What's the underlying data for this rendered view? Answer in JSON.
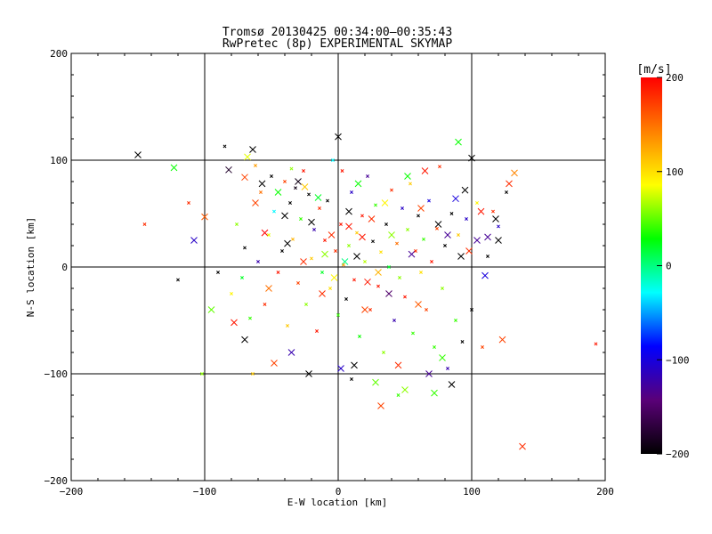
{
  "chart_data": {
    "type": "scatter",
    "title": "Tromsø 20130425 00:34:00–00:35:43",
    "subtitle": "RwPretec (8p) EXPERIMENTAL SKYMAP",
    "xlabel": "E-W location [km]",
    "ylabel": "N-S location [km]",
    "xlim": [
      -200,
      200
    ],
    "ylim": [
      -200,
      200
    ],
    "x_ticks": [
      -200,
      -100,
      0,
      100,
      200
    ],
    "y_ticks": [
      -200,
      -100,
      0,
      100,
      200
    ],
    "x_tick_labels": [
      "−200",
      "−100",
      "0",
      "100",
      "200"
    ],
    "y_tick_labels": [
      "−200",
      "−100",
      "0",
      "100",
      "200"
    ],
    "grid_lines_x": [
      -100,
      0,
      100
    ],
    "grid_lines_y": [
      -100,
      0,
      100
    ],
    "marker": "x",
    "colorbar": {
      "label": "[m/s]",
      "range": [
        -200,
        200
      ],
      "ticks": [
        -200,
        -100,
        0,
        100,
        200
      ],
      "tick_labels": [
        "−200",
        "−100",
        "0",
        "100",
        "200"
      ],
      "colors": [
        "#000000",
        "#5a0078",
        "#0000ff",
        "#00ffff",
        "#00ff00",
        "#ffff00",
        "#ff8000",
        "#ff0000"
      ]
    },
    "points": [
      {
        "x": -150,
        "y": 105,
        "v": -200,
        "s": "L"
      },
      {
        "x": -123,
        "y": 93,
        "v": 30,
        "s": "L"
      },
      {
        "x": -108,
        "y": 25,
        "v": -110,
        "s": "L"
      },
      {
        "x": -100,
        "y": 47,
        "v": 160,
        "s": "L"
      },
      {
        "x": -95,
        "y": -40,
        "v": 50,
        "s": "L"
      },
      {
        "x": -82,
        "y": 91,
        "v": -180,
        "s": "L"
      },
      {
        "x": -78,
        "y": -52,
        "v": 190,
        "s": "L"
      },
      {
        "x": -70,
        "y": -68,
        "v": -200,
        "s": "L"
      },
      {
        "x": -68,
        "y": 103,
        "v": 80,
        "s": "L"
      },
      {
        "x": -64,
        "y": 110,
        "v": -200,
        "s": "L"
      },
      {
        "x": -62,
        "y": 60,
        "v": 170,
        "s": "L"
      },
      {
        "x": -57,
        "y": 78,
        "v": -200,
        "s": "L"
      },
      {
        "x": -55,
        "y": 32,
        "v": 200,
        "s": "L"
      },
      {
        "x": -52,
        "y": -20,
        "v": 150,
        "s": "L"
      },
      {
        "x": -48,
        "y": -90,
        "v": 170,
        "s": "L"
      },
      {
        "x": -45,
        "y": 70,
        "v": 30,
        "s": "L"
      },
      {
        "x": -40,
        "y": 48,
        "v": -200,
        "s": "L"
      },
      {
        "x": -38,
        "y": 22,
        "v": -200,
        "s": "L"
      },
      {
        "x": -35,
        "y": -80,
        "v": -120,
        "s": "L"
      },
      {
        "x": -30,
        "y": 80,
        "v": -190,
        "s": "L"
      },
      {
        "x": -25,
        "y": 75,
        "v": 110,
        "s": "L"
      },
      {
        "x": -22,
        "y": -100,
        "v": -200,
        "s": "L"
      },
      {
        "x": -20,
        "y": 42,
        "v": -200,
        "s": "L"
      },
      {
        "x": -15,
        "y": 65,
        "v": 20,
        "s": "L"
      },
      {
        "x": -12,
        "y": -25,
        "v": 180,
        "s": "L"
      },
      {
        "x": -10,
        "y": 12,
        "v": 60,
        "s": "L"
      },
      {
        "x": -5,
        "y": 30,
        "v": 180,
        "s": "L"
      },
      {
        "x": 0,
        "y": 122,
        "v": -200,
        "s": "L"
      },
      {
        "x": 2,
        "y": -95,
        "v": -110,
        "s": "L"
      },
      {
        "x": 5,
        "y": 5,
        "v": 0,
        "s": "L"
      },
      {
        "x": 8,
        "y": 52,
        "v": -200,
        "s": "L"
      },
      {
        "x": 12,
        "y": -92,
        "v": -200,
        "s": "L"
      },
      {
        "x": 15,
        "y": 78,
        "v": 30,
        "s": "L"
      },
      {
        "x": 18,
        "y": 28,
        "v": 190,
        "s": "L"
      },
      {
        "x": 20,
        "y": -40,
        "v": 170,
        "s": "L"
      },
      {
        "x": 25,
        "y": 45,
        "v": 180,
        "s": "L"
      },
      {
        "x": 28,
        "y": -108,
        "v": 50,
        "s": "L"
      },
      {
        "x": 32,
        "y": -130,
        "v": 170,
        "s": "L"
      },
      {
        "x": 35,
        "y": 60,
        "v": 90,
        "s": "L"
      },
      {
        "x": 38,
        "y": -25,
        "v": -150,
        "s": "L"
      },
      {
        "x": 40,
        "y": 30,
        "v": 60,
        "s": "L"
      },
      {
        "x": 45,
        "y": -92,
        "v": 180,
        "s": "L"
      },
      {
        "x": 50,
        "y": -115,
        "v": 60,
        "s": "L"
      },
      {
        "x": 52,
        "y": 85,
        "v": 30,
        "s": "L"
      },
      {
        "x": 55,
        "y": 12,
        "v": -130,
        "s": "L"
      },
      {
        "x": 60,
        "y": -35,
        "v": 160,
        "s": "L"
      },
      {
        "x": 62,
        "y": 55,
        "v": 170,
        "s": "L"
      },
      {
        "x": 65,
        "y": 90,
        "v": 190,
        "s": "L"
      },
      {
        "x": 68,
        "y": -100,
        "v": -130,
        "s": "L"
      },
      {
        "x": 72,
        "y": -118,
        "v": 40,
        "s": "L"
      },
      {
        "x": 75,
        "y": 40,
        "v": -200,
        "s": "L"
      },
      {
        "x": 78,
        "y": -85,
        "v": 40,
        "s": "L"
      },
      {
        "x": 82,
        "y": 30,
        "v": -130,
        "s": "L"
      },
      {
        "x": 85,
        "y": -110,
        "v": -200,
        "s": "L"
      },
      {
        "x": 88,
        "y": 64,
        "v": -100,
        "s": "L"
      },
      {
        "x": 90,
        "y": 117,
        "v": 30,
        "s": "L"
      },
      {
        "x": 92,
        "y": 10,
        "v": -200,
        "s": "L"
      },
      {
        "x": 95,
        "y": 72,
        "v": -200,
        "s": "L"
      },
      {
        "x": 98,
        "y": 15,
        "v": 180,
        "s": "L"
      },
      {
        "x": 100,
        "y": 102,
        "v": -200,
        "s": "L"
      },
      {
        "x": 104,
        "y": 25,
        "v": -130,
        "s": "L"
      },
      {
        "x": 107,
        "y": 52,
        "v": 190,
        "s": "L"
      },
      {
        "x": 110,
        "y": -8,
        "v": -100,
        "s": "L"
      },
      {
        "x": 112,
        "y": 28,
        "v": -130,
        "s": "L"
      },
      {
        "x": 118,
        "y": 45,
        "v": -200,
        "s": "L"
      },
      {
        "x": 120,
        "y": 25,
        "v": -200,
        "s": "L"
      },
      {
        "x": 123,
        "y": -68,
        "v": 170,
        "s": "L"
      },
      {
        "x": 128,
        "y": 78,
        "v": 180,
        "s": "L"
      },
      {
        "x": 132,
        "y": 88,
        "v": 140,
        "s": "L"
      },
      {
        "x": 138,
        "y": -168,
        "v": 180,
        "s": "L"
      },
      {
        "x": -70,
        "y": 84,
        "v": 170,
        "s": "L"
      },
      {
        "x": 8,
        "y": 38,
        "v": 190,
        "s": "L"
      },
      {
        "x": 14,
        "y": 10,
        "v": -200,
        "s": "L"
      },
      {
        "x": -3,
        "y": -10,
        "v": 90,
        "s": "L"
      },
      {
        "x": 30,
        "y": -5,
        "v": 120,
        "s": "L"
      },
      {
        "x": -26,
        "y": 5,
        "v": 180,
        "s": "L"
      },
      {
        "x": 22,
        "y": -14,
        "v": 190,
        "s": "L"
      },
      {
        "x": -145,
        "y": 40,
        "v": 180,
        "s": "S"
      },
      {
        "x": -120,
        "y": -12,
        "v": -200,
        "s": "S"
      },
      {
        "x": -112,
        "y": 60,
        "v": 180,
        "s": "S"
      },
      {
        "x": -102,
        "y": -100,
        "v": 60,
        "s": "S"
      },
      {
        "x": -90,
        "y": -5,
        "v": -200,
        "s": "S"
      },
      {
        "x": -85,
        "y": 113,
        "v": -200,
        "s": "S"
      },
      {
        "x": -80,
        "y": -25,
        "v": 90,
        "s": "S"
      },
      {
        "x": -76,
        "y": 40,
        "v": 60,
        "s": "S"
      },
      {
        "x": -72,
        "y": -10,
        "v": 20,
        "s": "S"
      },
      {
        "x": -70,
        "y": 18,
        "v": -200,
        "s": "S"
      },
      {
        "x": -66,
        "y": -48,
        "v": 40,
        "s": "S"
      },
      {
        "x": -62,
        "y": 95,
        "v": 130,
        "s": "S"
      },
      {
        "x": -60,
        "y": 5,
        "v": -120,
        "s": "S"
      },
      {
        "x": -58,
        "y": 70,
        "v": 150,
        "s": "S"
      },
      {
        "x": -55,
        "y": -35,
        "v": 180,
        "s": "S"
      },
      {
        "x": -52,
        "y": 30,
        "v": 80,
        "s": "S"
      },
      {
        "x": -50,
        "y": 85,
        "v": -200,
        "s": "S"
      },
      {
        "x": -48,
        "y": 52,
        "v": -30,
        "s": "S"
      },
      {
        "x": -45,
        "y": -5,
        "v": 190,
        "s": "S"
      },
      {
        "x": -42,
        "y": 15,
        "v": -200,
        "s": "S"
      },
      {
        "x": -40,
        "y": 80,
        "v": 170,
        "s": "S"
      },
      {
        "x": -38,
        "y": -55,
        "v": 110,
        "s": "S"
      },
      {
        "x": -36,
        "y": 60,
        "v": -200,
        "s": "S"
      },
      {
        "x": -34,
        "y": 26,
        "v": 120,
        "s": "S"
      },
      {
        "x": -32,
        "y": 74,
        "v": -190,
        "s": "S"
      },
      {
        "x": -30,
        "y": -15,
        "v": 170,
        "s": "S"
      },
      {
        "x": -28,
        "y": 45,
        "v": 40,
        "s": "S"
      },
      {
        "x": -26,
        "y": 90,
        "v": 190,
        "s": "S"
      },
      {
        "x": -24,
        "y": -35,
        "v": 60,
        "s": "S"
      },
      {
        "x": -22,
        "y": 68,
        "v": -200,
        "s": "S"
      },
      {
        "x": -20,
        "y": 8,
        "v": 110,
        "s": "S"
      },
      {
        "x": -18,
        "y": 35,
        "v": -120,
        "s": "S"
      },
      {
        "x": -16,
        "y": -60,
        "v": 190,
        "s": "S"
      },
      {
        "x": -14,
        "y": 55,
        "v": 180,
        "s": "S"
      },
      {
        "x": -12,
        "y": -5,
        "v": 20,
        "s": "S"
      },
      {
        "x": -10,
        "y": 25,
        "v": 190,
        "s": "S"
      },
      {
        "x": -8,
        "y": 62,
        "v": -200,
        "s": "S"
      },
      {
        "x": -6,
        "y": -20,
        "v": 100,
        "s": "S"
      },
      {
        "x": -4,
        "y": 100,
        "v": -30,
        "s": "S"
      },
      {
        "x": -2,
        "y": 15,
        "v": 180,
        "s": "S"
      },
      {
        "x": 0,
        "y": -45,
        "v": 40,
        "s": "S"
      },
      {
        "x": 2,
        "y": 40,
        "v": 190,
        "s": "S"
      },
      {
        "x": 4,
        "y": 2,
        "v": 130,
        "s": "S"
      },
      {
        "x": 6,
        "y": -30,
        "v": -200,
        "s": "S"
      },
      {
        "x": 8,
        "y": 20,
        "v": 60,
        "s": "S"
      },
      {
        "x": 10,
        "y": 70,
        "v": -110,
        "s": "S"
      },
      {
        "x": 12,
        "y": -12,
        "v": 190,
        "s": "S"
      },
      {
        "x": 14,
        "y": 32,
        "v": 110,
        "s": "S"
      },
      {
        "x": 16,
        "y": -65,
        "v": 30,
        "s": "S"
      },
      {
        "x": 18,
        "y": 48,
        "v": 190,
        "s": "S"
      },
      {
        "x": 20,
        "y": 5,
        "v": 70,
        "s": "S"
      },
      {
        "x": 22,
        "y": 85,
        "v": -130,
        "s": "S"
      },
      {
        "x": 24,
        "y": -40,
        "v": 180,
        "s": "S"
      },
      {
        "x": 26,
        "y": 24,
        "v": -200,
        "s": "S"
      },
      {
        "x": 28,
        "y": 58,
        "v": 40,
        "s": "S"
      },
      {
        "x": 30,
        "y": -18,
        "v": 190,
        "s": "S"
      },
      {
        "x": 32,
        "y": 14,
        "v": 100,
        "s": "S"
      },
      {
        "x": 34,
        "y": -80,
        "v": 60,
        "s": "S"
      },
      {
        "x": 36,
        "y": 40,
        "v": -200,
        "s": "S"
      },
      {
        "x": 38,
        "y": 0,
        "v": 20,
        "s": "S"
      },
      {
        "x": 40,
        "y": 72,
        "v": 180,
        "s": "S"
      },
      {
        "x": 42,
        "y": -50,
        "v": -120,
        "s": "S"
      },
      {
        "x": 44,
        "y": 22,
        "v": 150,
        "s": "S"
      },
      {
        "x": 46,
        "y": -10,
        "v": 60,
        "s": "S"
      },
      {
        "x": 48,
        "y": 55,
        "v": -110,
        "s": "S"
      },
      {
        "x": 50,
        "y": -28,
        "v": 190,
        "s": "S"
      },
      {
        "x": 52,
        "y": 35,
        "v": 60,
        "s": "S"
      },
      {
        "x": 54,
        "y": 78,
        "v": 110,
        "s": "S"
      },
      {
        "x": 56,
        "y": -62,
        "v": 40,
        "s": "S"
      },
      {
        "x": 58,
        "y": 15,
        "v": 180,
        "s": "S"
      },
      {
        "x": 60,
        "y": 48,
        "v": -200,
        "s": "S"
      },
      {
        "x": 62,
        "y": -5,
        "v": 100,
        "s": "S"
      },
      {
        "x": 64,
        "y": 26,
        "v": 40,
        "s": "S"
      },
      {
        "x": 66,
        "y": -40,
        "v": 170,
        "s": "S"
      },
      {
        "x": 68,
        "y": 62,
        "v": -100,
        "s": "S"
      },
      {
        "x": 70,
        "y": 5,
        "v": 190,
        "s": "S"
      },
      {
        "x": 72,
        "y": -75,
        "v": 40,
        "s": "S"
      },
      {
        "x": 74,
        "y": 36,
        "v": 170,
        "s": "S"
      },
      {
        "x": 76,
        "y": 94,
        "v": 180,
        "s": "S"
      },
      {
        "x": 78,
        "y": -20,
        "v": 60,
        "s": "S"
      },
      {
        "x": 80,
        "y": 20,
        "v": -200,
        "s": "S"
      },
      {
        "x": 82,
        "y": -95,
        "v": -120,
        "s": "S"
      },
      {
        "x": 85,
        "y": 50,
        "v": -200,
        "s": "S"
      },
      {
        "x": 88,
        "y": -50,
        "v": 40,
        "s": "S"
      },
      {
        "x": 90,
        "y": 30,
        "v": 110,
        "s": "S"
      },
      {
        "x": 93,
        "y": -70,
        "v": -200,
        "s": "S"
      },
      {
        "x": 96,
        "y": 45,
        "v": -110,
        "s": "S"
      },
      {
        "x": 100,
        "y": -40,
        "v": -200,
        "s": "S"
      },
      {
        "x": 104,
        "y": 60,
        "v": 90,
        "s": "S"
      },
      {
        "x": 108,
        "y": -75,
        "v": 170,
        "s": "S"
      },
      {
        "x": 112,
        "y": 10,
        "v": -200,
        "s": "S"
      },
      {
        "x": 116,
        "y": 52,
        "v": 180,
        "s": "S"
      },
      {
        "x": 120,
        "y": 38,
        "v": -110,
        "s": "S"
      },
      {
        "x": 126,
        "y": 70,
        "v": -200,
        "s": "S"
      },
      {
        "x": 193,
        "y": -72,
        "v": 190,
        "s": "S"
      },
      {
        "x": -35,
        "y": 92,
        "v": 60,
        "s": "S"
      },
      {
        "x": 3,
        "y": 90,
        "v": 190,
        "s": "S"
      },
      {
        "x": 10,
        "y": -105,
        "v": -200,
        "s": "S"
      },
      {
        "x": -64,
        "y": -100,
        "v": 110,
        "s": "S"
      },
      {
        "x": 45,
        "y": -120,
        "v": 40,
        "s": "S"
      }
    ]
  }
}
